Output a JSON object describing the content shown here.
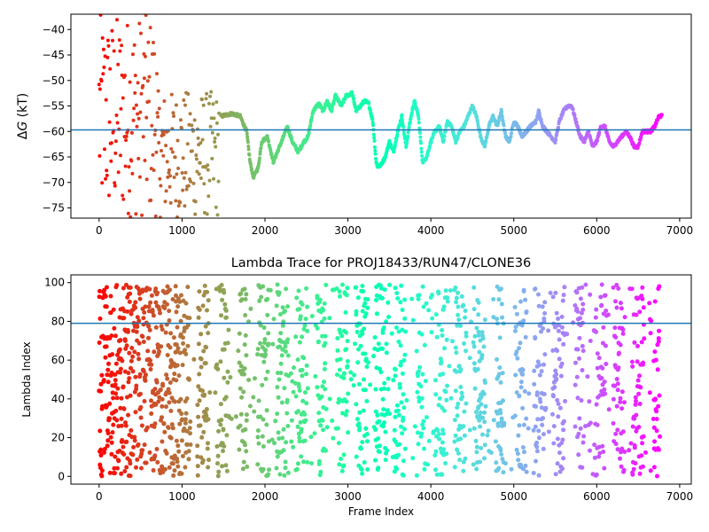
{
  "chart_data": [
    {
      "type": "scatter",
      "title": "",
      "xlabel": "",
      "ylabel": "ΔG (kT)",
      "ylabel_parts": {
        "prefix": "Δ",
        "symbol": "G",
        "suffix": " (kT)"
      },
      "xlim": [
        -340,
        7140
      ],
      "ylim": [
        -77,
        -37
      ],
      "xticks": [
        0,
        1000,
        2000,
        3000,
        4000,
        5000,
        6000,
        7000
      ],
      "xtick_labels": [
        "0",
        "1000",
        "2000",
        "3000",
        "4000",
        "5000",
        "6000",
        "7000"
      ],
      "yticks": [
        -75,
        -70,
        -65,
        -60,
        -55,
        -50,
        -45,
        -40
      ],
      "ytick_labels": [
        "−75",
        "−70",
        "−65",
        "−60",
        "−55",
        "−50",
        "−45",
        "−40"
      ],
      "reference_line": {
        "y": -59.7,
        "color": "#1f77b4"
      },
      "colormap": "rainbow (red at frame 0 to violet at last frame)",
      "marker_size": 4,
      "x_max": 6790,
      "trace": [
        [
          1470,
          -57
        ],
        [
          1600,
          -56.5
        ],
        [
          1700,
          -57
        ],
        [
          1780,
          -60
        ],
        [
          1820,
          -66
        ],
        [
          1860,
          -69
        ],
        [
          1920,
          -67
        ],
        [
          1960,
          -62
        ],
        [
          2030,
          -61
        ],
        [
          2100,
          -66
        ],
        [
          2150,
          -64
        ],
        [
          2200,
          -62
        ],
        [
          2270,
          -59
        ],
        [
          2330,
          -62
        ],
        [
          2400,
          -64
        ],
        [
          2470,
          -62
        ],
        [
          2520,
          -61
        ],
        [
          2580,
          -56
        ],
        [
          2650,
          -54.5
        ],
        [
          2700,
          -56
        ],
        [
          2750,
          -54
        ],
        [
          2800,
          -56
        ],
        [
          2850,
          -53
        ],
        [
          2920,
          -55
        ],
        [
          2980,
          -53
        ],
        [
          3050,
          -52.5
        ],
        [
          3100,
          -56
        ],
        [
          3150,
          -55
        ],
        [
          3200,
          -54
        ],
        [
          3250,
          -54.5
        ],
        [
          3300,
          -58
        ],
        [
          3340,
          -66
        ],
        [
          3360,
          -67
        ],
        [
          3400,
          -66.5
        ],
        [
          3450,
          -65
        ],
        [
          3500,
          -62
        ],
        [
          3550,
          -64
        ],
        [
          3600,
          -60
        ],
        [
          3650,
          -57
        ],
        [
          3700,
          -63
        ],
        [
          3750,
          -58
        ],
        [
          3800,
          -54
        ],
        [
          3850,
          -57
        ],
        [
          3900,
          -66
        ],
        [
          3950,
          -65
        ],
        [
          4000,
          -62
        ],
        [
          4050,
          -60
        ],
        [
          4100,
          -59
        ],
        [
          4150,
          -62
        ],
        [
          4200,
          -58
        ],
        [
          4250,
          -59
        ],
        [
          4300,
          -62
        ],
        [
          4350,
          -60
        ],
        [
          4400,
          -59
        ],
        [
          4450,
          -57
        ],
        [
          4500,
          -55
        ],
        [
          4550,
          -57
        ],
        [
          4600,
          -61
        ],
        [
          4650,
          -63
        ],
        [
          4700,
          -59
        ],
        [
          4750,
          -57
        ],
        [
          4800,
          -59
        ],
        [
          4850,
          -56
        ],
        [
          4900,
          -61
        ],
        [
          4950,
          -62
        ],
        [
          5000,
          -58
        ],
        [
          5050,
          -59
        ],
        [
          5100,
          -61
        ],
        [
          5150,
          -60
        ],
        [
          5200,
          -59
        ],
        [
          5270,
          -58
        ],
        [
          5300,
          -56
        ],
        [
          5350,
          -59
        ],
        [
          5400,
          -60
        ],
        [
          5450,
          -61
        ],
        [
          5500,
          -62
        ],
        [
          5550,
          -58
        ],
        [
          5600,
          -56
        ],
        [
          5650,
          -55
        ],
        [
          5700,
          -55
        ],
        [
          5750,
          -58
        ],
        [
          5800,
          -61
        ],
        [
          5850,
          -62
        ],
        [
          5900,
          -60
        ],
        [
          5950,
          -63
        ],
        [
          6000,
          -62
        ],
        [
          6050,
          -59
        ],
        [
          6100,
          -59
        ],
        [
          6150,
          -62
        ],
        [
          6200,
          -63
        ],
        [
          6250,
          -62
        ],
        [
          6300,
          -61
        ],
        [
          6350,
          -60
        ],
        [
          6400,
          -61
        ],
        [
          6450,
          -63
        ],
        [
          6500,
          -63
        ],
        [
          6550,
          -60
        ],
        [
          6600,
          -60
        ],
        [
          6650,
          -60
        ],
        [
          6700,
          -59
        ],
        [
          6750,
          -57
        ],
        [
          6790,
          -57
        ]
      ]
    },
    {
      "type": "scatter",
      "title": "Lambda Trace for PROJ18433/RUN47/CLONE36",
      "xlabel": "Frame Index",
      "ylabel": "Lambda Index",
      "xlim": [
        -340,
        7140
      ],
      "ylim": [
        -4,
        104
      ],
      "xticks": [
        0,
        1000,
        2000,
        3000,
        4000,
        5000,
        6000,
        7000
      ],
      "xtick_labels": [
        "0",
        "1000",
        "2000",
        "3000",
        "4000",
        "5000",
        "6000",
        "7000"
      ],
      "yticks": [
        0,
        20,
        40,
        60,
        80,
        100
      ],
      "ytick_labels": [
        "0",
        "20",
        "40",
        "60",
        "80",
        "100"
      ],
      "reference_line": {
        "y": 79,
        "color": "#1f77b4"
      },
      "colormap": "rainbow (red at frame 0 to violet at last frame)",
      "marker_size": 5,
      "x_max": 6760,
      "y_range": [
        0,
        99
      ]
    }
  ]
}
